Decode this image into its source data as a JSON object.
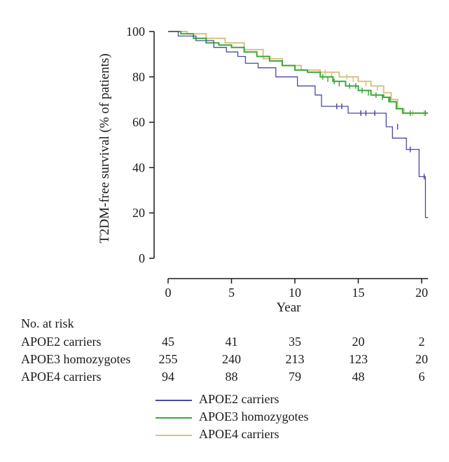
{
  "chart_data": {
    "type": "line",
    "title": "",
    "xlabel": "Year",
    "ylabel": "T2DM-free survival (% of patients)",
    "xlim": [
      0,
      20.5
    ],
    "ylim": [
      0,
      100
    ],
    "x_ticks": [
      "0",
      "5",
      "10",
      "15",
      "20"
    ],
    "y_ticks": [
      "0",
      "20",
      "40",
      "60",
      "80",
      "100"
    ],
    "grid": false,
    "legend_position": "below",
    "series": [
      {
        "name": "APOE2 carriers",
        "color": "#4a4aa0",
        "steps": [
          [
            0,
            100
          ],
          [
            0.8,
            98
          ],
          [
            2.2,
            96
          ],
          [
            3.6,
            93
          ],
          [
            4.6,
            91
          ],
          [
            5.5,
            89
          ],
          [
            6.1,
            86
          ],
          [
            7.1,
            84
          ],
          [
            8.5,
            80
          ],
          [
            10.2,
            76
          ],
          [
            11.6,
            72
          ],
          [
            12.1,
            67
          ],
          [
            14.2,
            64
          ],
          [
            17.2,
            58
          ],
          [
            17.7,
            53
          ],
          [
            18.8,
            48
          ],
          [
            19.8,
            36
          ],
          [
            20.3,
            18
          ],
          [
            20.5,
            18
          ]
        ],
        "censor_marks": [
          [
            13.3,
            67
          ],
          [
            13.7,
            67
          ],
          [
            15.2,
            64
          ],
          [
            15.6,
            64
          ],
          [
            16.3,
            64
          ],
          [
            18.1,
            58
          ],
          [
            19.1,
            48
          ],
          [
            20.2,
            36
          ]
        ]
      },
      {
        "name": "APOE3 homozygotes",
        "color": "#3aa83a",
        "steps": [
          [
            0,
            100
          ],
          [
            1,
            99
          ],
          [
            2,
            97
          ],
          [
            3,
            95
          ],
          [
            4,
            94
          ],
          [
            5,
            93
          ],
          [
            6,
            91
          ],
          [
            7,
            89
          ],
          [
            8,
            87
          ],
          [
            9,
            85
          ],
          [
            10,
            83
          ],
          [
            11,
            82
          ],
          [
            12,
            80
          ],
          [
            13,
            78
          ],
          [
            14,
            76
          ],
          [
            15,
            74
          ],
          [
            16,
            72
          ],
          [
            17,
            71
          ],
          [
            17.5,
            69
          ],
          [
            18,
            66
          ],
          [
            18.5,
            64
          ],
          [
            20.5,
            64
          ]
        ],
        "censor_marks": [
          [
            12.2,
            80
          ],
          [
            12.6,
            79
          ],
          [
            13.1,
            78
          ],
          [
            13.5,
            77
          ],
          [
            14.3,
            76
          ],
          [
            14.8,
            76
          ],
          [
            15.3,
            74
          ],
          [
            15.8,
            73
          ],
          [
            16.4,
            72
          ],
          [
            16.9,
            71
          ],
          [
            17.4,
            70
          ],
          [
            19.1,
            64
          ],
          [
            20.3,
            64
          ]
        ]
      },
      {
        "name": "APOE4 carriers",
        "color": "#d8c282",
        "steps": [
          [
            0,
            100
          ],
          [
            1.5,
            99
          ],
          [
            3,
            97
          ],
          [
            4.5,
            95
          ],
          [
            6,
            92
          ],
          [
            7.5,
            88
          ],
          [
            9,
            85
          ],
          [
            10.5,
            83
          ],
          [
            12,
            82
          ],
          [
            13.5,
            80
          ],
          [
            15,
            78
          ],
          [
            16,
            76
          ],
          [
            17,
            73
          ],
          [
            17.6,
            70
          ],
          [
            18.1,
            66
          ],
          [
            18.6,
            64
          ],
          [
            20.5,
            64
          ]
        ],
        "censor_marks": [
          [
            12.4,
            82
          ],
          [
            12.9,
            81
          ],
          [
            14.1,
            80
          ],
          [
            14.6,
            79
          ],
          [
            15.6,
            77
          ],
          [
            16.5,
            75
          ],
          [
            19.3,
            64
          ],
          [
            20.2,
            64
          ]
        ]
      }
    ]
  },
  "risk_table": {
    "title": "No. at risk",
    "rows": [
      {
        "label": "APOE2 carriers",
        "values": [
          "45",
          "41",
          "35",
          "20",
          "2"
        ]
      },
      {
        "label": "APOE3 homozygotes",
        "values": [
          "255",
          "240",
          "213",
          "123",
          "20"
        ]
      },
      {
        "label": "APOE4 carriers",
        "values": [
          "94",
          "88",
          "79",
          "48",
          "6"
        ]
      }
    ]
  },
  "legend": [
    {
      "label": "APOE2 carriers",
      "color": "#4a4aa0"
    },
    {
      "label": "APOE3 homozygotes",
      "color": "#3aa83a"
    },
    {
      "label": "APOE4 carriers",
      "color": "#d8c282"
    }
  ]
}
